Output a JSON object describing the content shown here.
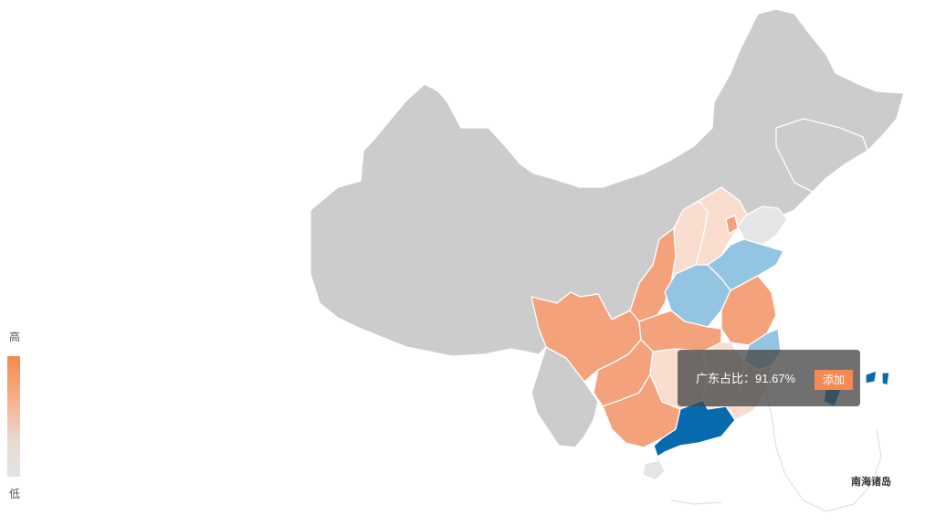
{
  "legend": {
    "high_label": "高",
    "low_label": "低",
    "high_color": "#f58a47",
    "low_color": "#e3e3e3"
  },
  "tooltip": {
    "text": "广东占比：91.67%",
    "add_button_label": "添加",
    "button_color": "#f58a52"
  },
  "map": {
    "inset_label": "南海诸岛",
    "colors": {
      "no_data": "#cccccc",
      "low": "#f9ddcf",
      "mid": "#f4a27c",
      "light_blue": "#93c4e1",
      "highlight": "#0769ae"
    }
  }
}
